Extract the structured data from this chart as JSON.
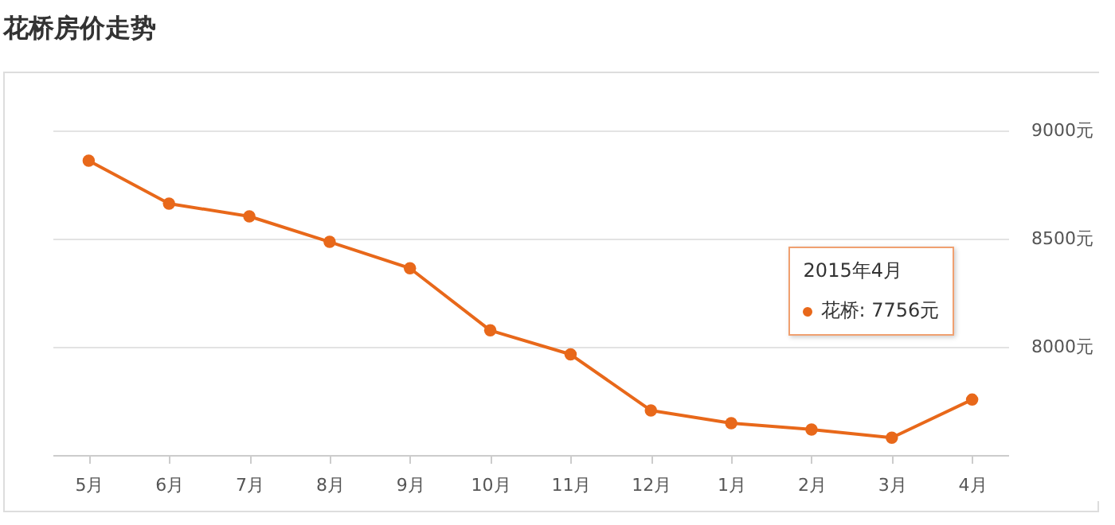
{
  "chart_data": {
    "type": "line",
    "title": "花桥房价走势",
    "categories": [
      "5月",
      "6月",
      "7月",
      "8月",
      "9月",
      "10月",
      "11月",
      "12月",
      "1月",
      "2月",
      "3月",
      "4月"
    ],
    "series": [
      {
        "color": "#e8681a",
        "values": [
          8860,
          8662,
          8603,
          8485,
          8363,
          8076,
          7965,
          7706,
          7647,
          7618,
          7580,
          7756
        ]
      }
    ],
    "ylim": [
      7500,
      9000
    ],
    "yticks": [
      {
        "value": 8000,
        "label": "8000元"
      },
      {
        "value": 8500,
        "label": "8500元"
      },
      {
        "value": 9000,
        "label": "9000元"
      }
    ],
    "grid": "y",
    "marker": "circle",
    "annotations": [
      "2015年4月",
      "花桥: 7756元"
    ]
  }
}
